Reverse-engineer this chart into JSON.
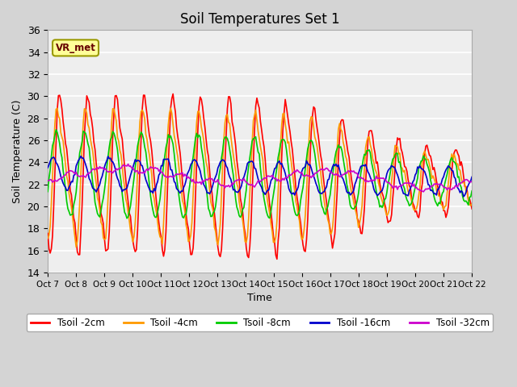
{
  "title": "Soil Temperatures Set 1",
  "xlabel": "Time",
  "ylabel": "Soil Temperature (C)",
  "ylim": [
    14,
    36
  ],
  "yticks": [
    14,
    16,
    18,
    20,
    22,
    24,
    26,
    28,
    30,
    32,
    34,
    36
  ],
  "xtick_labels": [
    "Oct 7",
    "Oct 8",
    "Oct 9",
    "Oct 10",
    "Oct 11",
    "Oct 12",
    "Oct 13",
    "Oct 14",
    "Oct 15",
    "Oct 16",
    "Oct 17",
    "Oct 18",
    "Oct 19",
    "Oct 20",
    "Oct 21",
    "Oct 22"
  ],
  "legend_labels": [
    "Tsoil -2cm",
    "Tsoil -4cm",
    "Tsoil -8cm",
    "Tsoil -16cm",
    "Tsoil -32cm"
  ],
  "line_colors": [
    "#ff0000",
    "#ff9900",
    "#00cc00",
    "#0000cc",
    "#cc00cc"
  ],
  "bg_color": "#d4d4d4",
  "plot_bg_color": "#eeeeee",
  "annotation_text": "VR_met",
  "annotation_box_facecolor": "#ffff99",
  "annotation_box_edgecolor": "#999900",
  "days": 15
}
